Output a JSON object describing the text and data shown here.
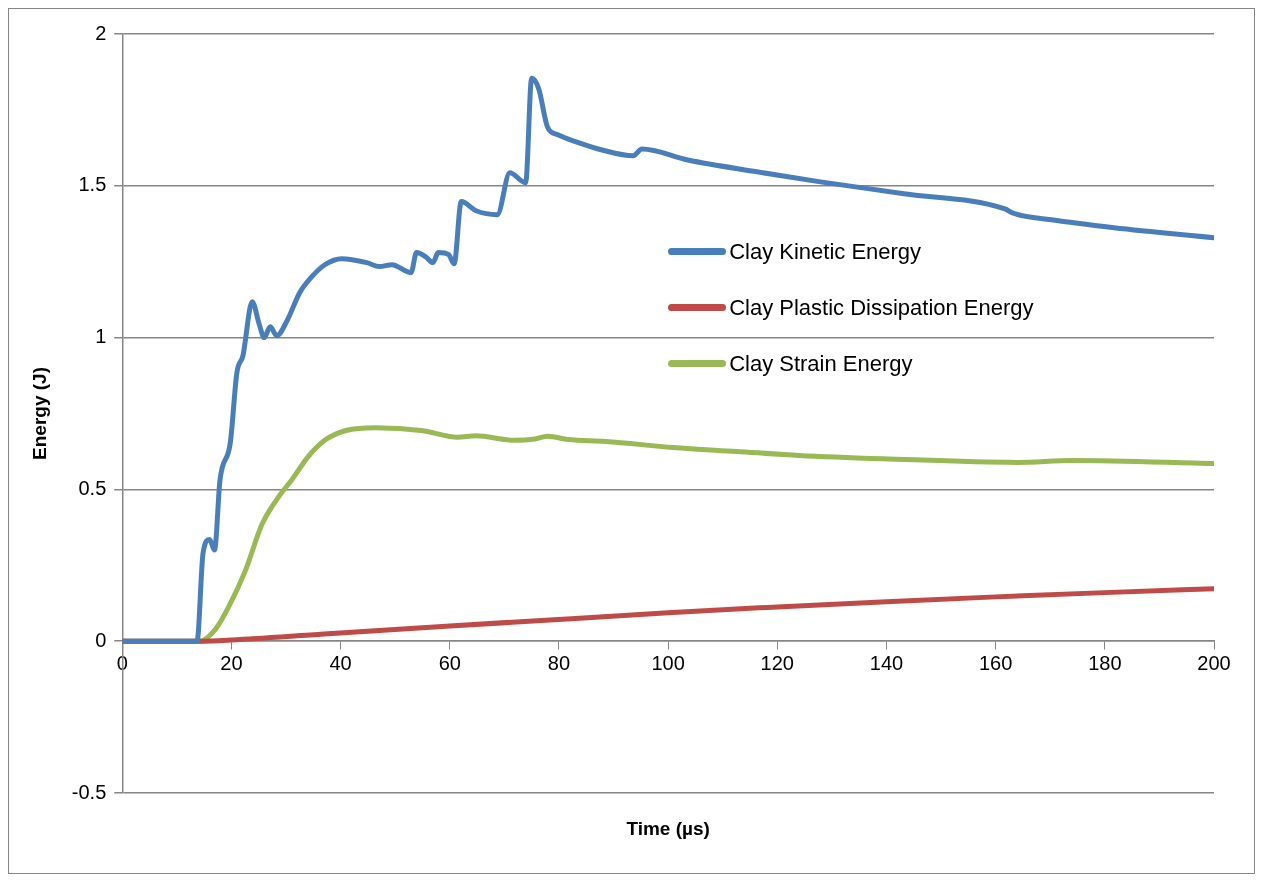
{
  "chart_data": {
    "type": "line",
    "xlabel": "Time (µs)",
    "ylabel": "Energy (J)",
    "xlim": [
      0,
      200
    ],
    "xticks": [
      0,
      20,
      40,
      60,
      80,
      100,
      120,
      140,
      160,
      180,
      200
    ],
    "ylim": [
      -0.5,
      2
    ],
    "yticks": [
      -0.5,
      0,
      0.5,
      1,
      1.5,
      2
    ],
    "grid": "y",
    "legend": "right",
    "marker": "none",
    "line_style": "solid",
    "series": [
      {
        "name": "Clay Kinetic Energy",
        "color": "#4a7ebb",
        "x": [
          0,
          13.7,
          14.8,
          16.0,
          16.9,
          17.9,
          19.8,
          21.0,
          22.1,
          23.8,
          25.1,
          26.0,
          27.1,
          28.3,
          30.2,
          32.5,
          34.4,
          37.1,
          40.2,
          44.8,
          47.1,
          49.4,
          52.9,
          53.9,
          55.6,
          56.9,
          57.9,
          59.8,
          60.8,
          62.1,
          64.8,
          68.7,
          71.0,
          73.9,
          75.0,
          76.3,
          77.9,
          79.8,
          83.3,
          87.9,
          93.6,
          95.2,
          103.6,
          116.3,
          127.9,
          143.2,
          161.7,
          163.2,
          170.2,
          181.7,
          200
        ],
        "values": [
          0,
          0,
          0.29,
          0.335,
          0.3,
          0.53,
          0.655,
          0.885,
          0.94,
          1.118,
          1.043,
          1.0,
          1.036,
          1.006,
          1.056,
          1.148,
          1.194,
          1.24,
          1.26,
          1.247,
          1.234,
          1.24,
          1.214,
          1.28,
          1.266,
          1.247,
          1.28,
          1.273,
          1.243,
          1.448,
          1.418,
          1.405,
          1.543,
          1.51,
          1.854,
          1.819,
          1.694,
          1.668,
          1.644,
          1.618,
          1.599,
          1.621,
          1.585,
          1.546,
          1.513,
          1.474,
          1.424,
          1.41,
          1.388,
          1.362,
          1.329
        ]
      },
      {
        "name": "Clay Plastic Dissipation Energy",
        "color": "#be4b48",
        "x": [
          0,
          14,
          20,
          37,
          60,
          83,
          100,
          120,
          140,
          160,
          180,
          200
        ],
        "values": [
          0,
          0,
          0.004,
          0.024,
          0.05,
          0.075,
          0.094,
          0.113,
          0.13,
          0.146,
          0.16,
          0.173
        ]
      },
      {
        "name": "Clay Strain Energy",
        "color": "#98b954",
        "x": [
          0,
          14.2,
          17.1,
          19.4,
          22.5,
          25.6,
          28.7,
          31,
          34.1,
          37.1,
          41,
          46.4,
          54.8,
          61.4,
          64.8,
          71.7,
          75.6,
          77.9,
          81.7,
          88.6,
          100.9,
          112.5,
          124,
          139.4,
          164,
          174,
          200
        ],
        "values": [
          0,
          0,
          0.04,
          0.11,
          0.23,
          0.385,
          0.477,
          0.53,
          0.609,
          0.662,
          0.694,
          0.703,
          0.694,
          0.672,
          0.677,
          0.662,
          0.666,
          0.675,
          0.664,
          0.658,
          0.638,
          0.625,
          0.612,
          0.601,
          0.589,
          0.595,
          0.585
        ]
      }
    ]
  }
}
